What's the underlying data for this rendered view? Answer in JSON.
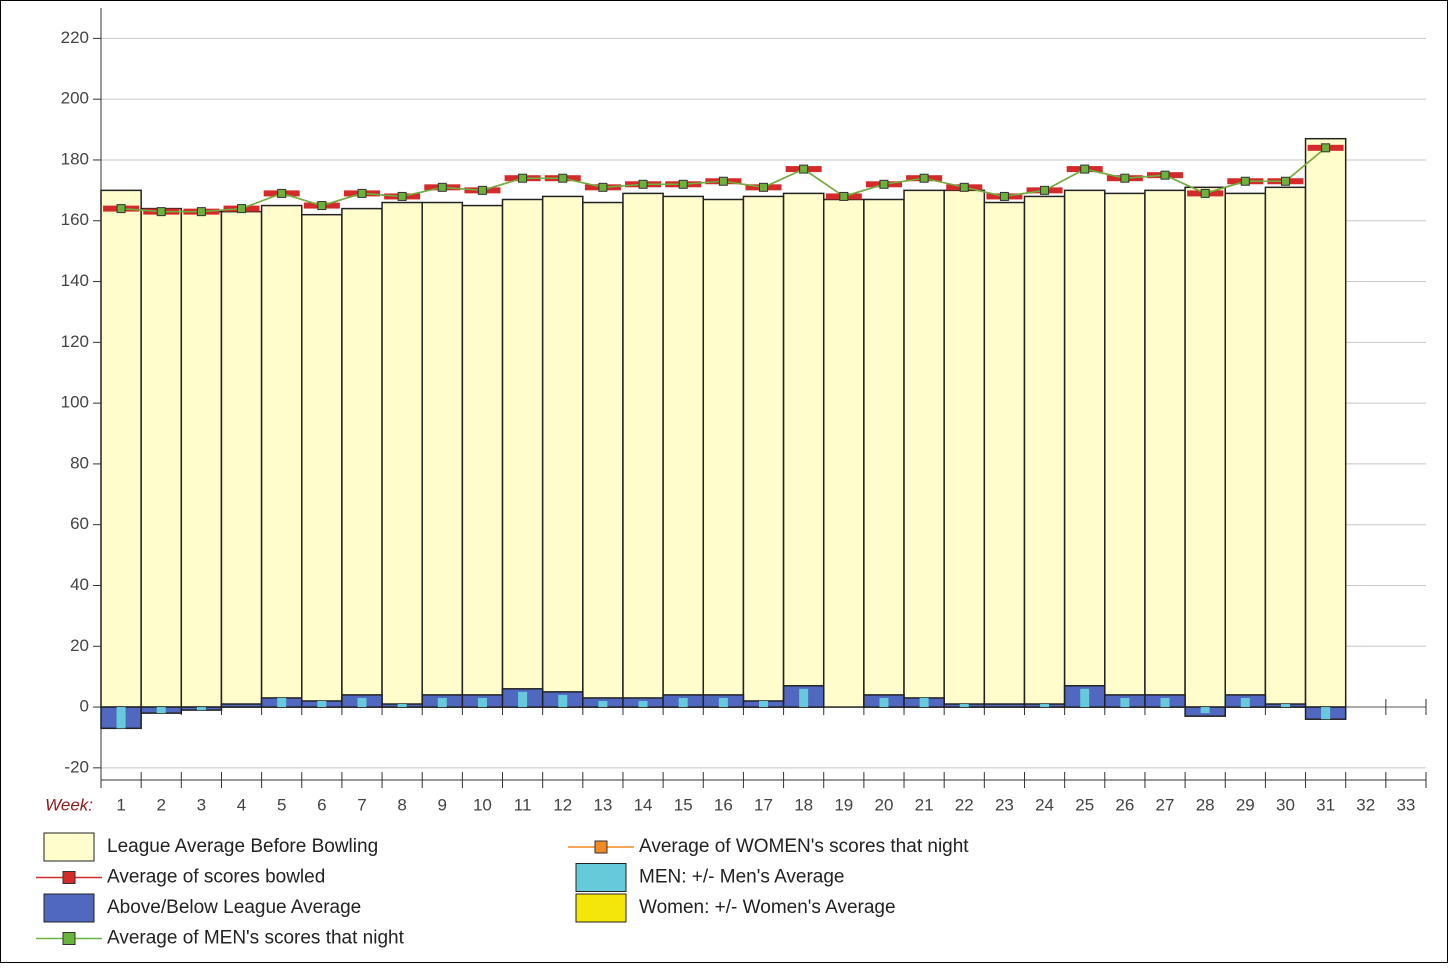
{
  "chart_data": {
    "type": "bar",
    "x_label": "Week:",
    "categories": [
      "1",
      "2",
      "3",
      "4",
      "5",
      "6",
      "7",
      "8",
      "9",
      "10",
      "11",
      "12",
      "13",
      "14",
      "15",
      "16",
      "17",
      "18",
      "19",
      "20",
      "21",
      "22",
      "23",
      "24",
      "25",
      "26",
      "27",
      "28",
      "29",
      "30",
      "31",
      "32",
      "33"
    ],
    "ylim": [
      -24,
      230
    ],
    "yticks": [
      -20,
      0,
      20,
      40,
      60,
      80,
      100,
      120,
      140,
      160,
      180,
      200,
      220
    ],
    "grid": true,
    "series": [
      {
        "name": "League Average Before Bowling",
        "type": "bar",
        "color": "#fffdcc",
        "values": [
          170,
          164,
          163,
          163,
          165,
          162,
          164,
          166,
          166,
          165,
          167,
          168,
          166,
          169,
          168,
          167,
          168,
          169,
          167,
          167,
          170,
          170,
          166,
          168,
          170,
          169,
          170,
          171,
          169,
          171,
          187,
          null,
          null
        ]
      },
      {
        "name": "Average of scores bowled",
        "type": "line",
        "color": "#d42a2a",
        "values": [
          164,
          163,
          163,
          164,
          169,
          165,
          169,
          168,
          171,
          170,
          174,
          174,
          171,
          172,
          172,
          173,
          171,
          177,
          168,
          172,
          174,
          171,
          168,
          170,
          177,
          174,
          175,
          169,
          173,
          173,
          184,
          null,
          null
        ]
      },
      {
        "name": "Above/Below League Average",
        "type": "bar",
        "color": "#5068c0",
        "values": [
          -7,
          -2,
          -1,
          1,
          3,
          2,
          4,
          1,
          4,
          4,
          6,
          5,
          3,
          3,
          4,
          4,
          2,
          7,
          0,
          4,
          3,
          1,
          1,
          1,
          7,
          4,
          4,
          -3,
          4,
          1,
          -4,
          null,
          null
        ]
      },
      {
        "name": "Average of MEN's scores that night",
        "type": "line",
        "color": "#6ab43e",
        "values": [
          164,
          163,
          163,
          164,
          169,
          165,
          169,
          168,
          171,
          170,
          174,
          174,
          171,
          172,
          172,
          173,
          171,
          177,
          168,
          172,
          174,
          171,
          168,
          170,
          177,
          174,
          175,
          169,
          173,
          173,
          184,
          null,
          null
        ]
      },
      {
        "name": "Average of WOMEN's scores that night",
        "type": "line",
        "color": "#f08a24",
        "values": [
          null,
          null,
          null,
          null,
          null,
          null,
          null,
          null,
          null,
          null,
          null,
          null,
          null,
          null,
          null,
          null,
          null,
          null,
          null,
          null,
          null,
          null,
          null,
          null,
          null,
          null,
          null,
          null,
          null,
          null,
          null,
          null,
          null
        ]
      },
      {
        "name": "MEN: +/- Men's Average",
        "type": "bar",
        "color": "#66cadb",
        "values": [
          -7,
          -2,
          -1,
          0,
          3,
          2,
          3,
          1,
          3,
          3,
          5,
          4,
          2,
          2,
          3,
          3,
          2,
          6,
          0,
          3,
          3,
          1,
          0,
          1,
          6,
          3,
          3,
          -2,
          3,
          1,
          -4,
          null,
          null
        ]
      },
      {
        "name": "Women: +/- Women's Average",
        "type": "bar",
        "color": "#f5e60a",
        "values": [
          null,
          null,
          null,
          null,
          null,
          null,
          null,
          null,
          null,
          null,
          null,
          null,
          null,
          null,
          null,
          null,
          null,
          null,
          null,
          null,
          null,
          null,
          null,
          null,
          null,
          null,
          null,
          null,
          null,
          null,
          null,
          null,
          null
        ]
      }
    ]
  }
}
